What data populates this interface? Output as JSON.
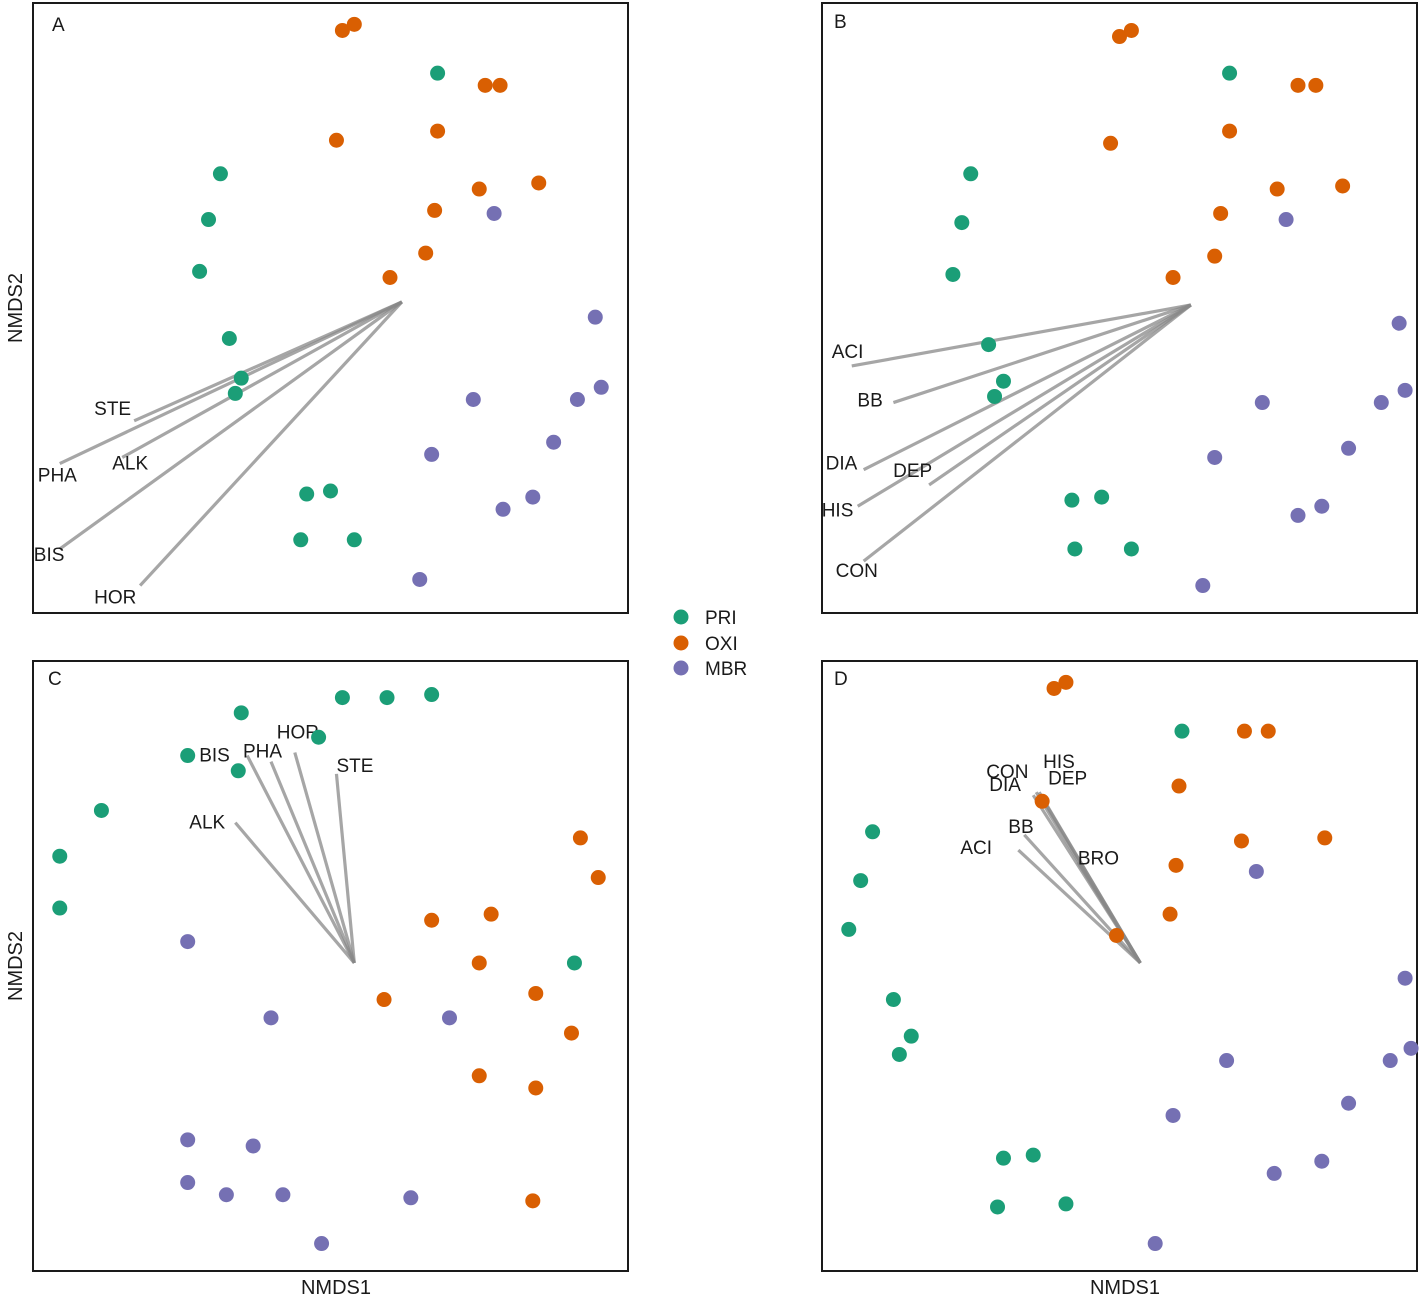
{
  "figure": {
    "xlabel": "NMDS1",
    "ylabel": "NMDS2"
  },
  "legend": {
    "position": "center",
    "items": [
      {
        "name": "PRI",
        "color": "#1b9e77"
      },
      {
        "name": "OXI",
        "color": "#d95f02"
      },
      {
        "name": "MBR",
        "color": "#7570b3"
      }
    ]
  },
  "colors": {
    "PRI": "#1b9e77",
    "OXI": "#d95f02",
    "MBR": "#7570b3",
    "arrow": "#888888",
    "frame": "#1a1a1a"
  },
  "chart_data": [
    {
      "panel": "A",
      "type": "scatter",
      "xlabel": "",
      "ylabel": "NMDS2",
      "xlim": [
        0,
        100
      ],
      "ylim": [
        0,
        100
      ],
      "arrow_origin": [
        62,
        51
      ],
      "series": [
        {
          "name": "PRI",
          "points": [
            [
              68,
              88.5
            ],
            [
              31.5,
              72
            ],
            [
              29.5,
              64.5
            ],
            [
              28,
              56
            ],
            [
              33,
              45
            ],
            [
              35,
              38.5
            ],
            [
              34,
              36
            ],
            [
              46,
              19.5
            ],
            [
              50,
              20
            ],
            [
              45,
              12
            ],
            [
              54,
              12
            ]
          ]
        },
        {
          "name": "OXI",
          "points": [
            [
              52,
              95.5
            ],
            [
              54,
              96.5
            ],
            [
              76,
              86.5
            ],
            [
              78.5,
              86.5
            ],
            [
              51,
              77.5
            ],
            [
              68,
              79
            ],
            [
              75,
              69.5
            ],
            [
              85,
              70.5
            ],
            [
              67.5,
              66
            ],
            [
              66,
              59
            ],
            [
              60,
              55
            ]
          ]
        },
        {
          "name": "MBR",
          "points": [
            [
              77.5,
              65.5
            ],
            [
              94.5,
              48.5
            ],
            [
              95.5,
              37
            ],
            [
              91.5,
              35
            ],
            [
              74,
              35
            ],
            [
              87.5,
              28
            ],
            [
              67,
              26
            ],
            [
              84,
              19
            ],
            [
              79,
              17
            ],
            [
              65,
              5.5
            ]
          ]
        }
      ],
      "vectors": [
        {
          "name": "STE",
          "end": [
            17,
            31.5
          ]
        },
        {
          "name": "PHA",
          "end": [
            4.5,
            24.5
          ]
        },
        {
          "name": "ALK",
          "end": [
            15,
            25.5
          ]
        },
        {
          "name": "BIS",
          "end": [
            4.5,
            10.5
          ]
        },
        {
          "name": "HOR",
          "end": [
            18,
            4.5
          ]
        }
      ]
    },
    {
      "panel": "B",
      "type": "scatter",
      "xlabel": "",
      "ylabel": "",
      "xlim": [
        0,
        100
      ],
      "ylim": [
        0,
        100
      ],
      "arrow_origin": [
        62,
        50.5
      ],
      "series": [
        {
          "name": "PRI",
          "points": [
            [
              68.5,
              88.5
            ],
            [
              25,
              72
            ],
            [
              23.5,
              64
            ],
            [
              22,
              55.5
            ],
            [
              28,
              44
            ],
            [
              30.5,
              38
            ],
            [
              29,
              35.5
            ],
            [
              42,
              18.5
            ],
            [
              47,
              19
            ],
            [
              42.5,
              10.5
            ],
            [
              52,
              10.5
            ]
          ]
        },
        {
          "name": "OXI",
          "points": [
            [
              50,
              94.5
            ],
            [
              52,
              95.5
            ],
            [
              80,
              86.5
            ],
            [
              83,
              86.5
            ],
            [
              48.5,
              77
            ],
            [
              68.5,
              79
            ],
            [
              76.5,
              69.5
            ],
            [
              87.5,
              70
            ],
            [
              67,
              65.5
            ],
            [
              66,
              58.5
            ],
            [
              59,
              55
            ]
          ]
        },
        {
          "name": "MBR",
          "points": [
            [
              78,
              64.5
            ],
            [
              97,
              47.5
            ],
            [
              98,
              36.5
            ],
            [
              94,
              34.5
            ],
            [
              74,
              34.5
            ],
            [
              88.5,
              27
            ],
            [
              66,
              25.5
            ],
            [
              84,
              17.5
            ],
            [
              80,
              16
            ],
            [
              64,
              4.5
            ]
          ]
        }
      ],
      "vectors": [
        {
          "name": "ACI",
          "end": [
            5,
            40.5
          ]
        },
        {
          "name": "BB",
          "end": [
            12,
            34.5
          ]
        },
        {
          "name": "DIA",
          "end": [
            7,
            23.5
          ]
        },
        {
          "name": "HIS",
          "end": [
            6,
            17.5
          ]
        },
        {
          "name": "DEP",
          "end": [
            18,
            21
          ]
        },
        {
          "name": "CON",
          "end": [
            7,
            8.5
          ]
        }
      ]
    },
    {
      "panel": "C",
      "type": "scatter",
      "xlabel": "NMDS1",
      "ylabel": "NMDS2",
      "xlim": [
        0,
        100
      ],
      "ylim": [
        0,
        100
      ],
      "arrow_origin": [
        54,
        50.5
      ],
      "series": [
        {
          "name": "PRI",
          "points": [
            [
              52,
              94
            ],
            [
              59.5,
              94
            ],
            [
              67,
              94.5
            ],
            [
              35,
              91.5
            ],
            [
              48,
              87.5
            ],
            [
              26,
              84.5
            ],
            [
              34.5,
              82
            ],
            [
              11.5,
              75.5
            ],
            [
              4.5,
              68
            ],
            [
              4.5,
              59.5
            ],
            [
              91,
              50.5
            ]
          ]
        },
        {
          "name": "OXI",
          "points": [
            [
              92,
              71
            ],
            [
              95,
              64.5
            ],
            [
              67,
              57.5
            ],
            [
              77,
              58.5
            ],
            [
              75,
              50.5
            ],
            [
              59,
              44.5
            ],
            [
              84.5,
              45.5
            ],
            [
              90.5,
              39
            ],
            [
              75,
              32
            ],
            [
              84.5,
              30
            ],
            [
              84,
              11.5
            ]
          ]
        },
        {
          "name": "MBR",
          "points": [
            [
              26,
              54
            ],
            [
              40,
              41.5
            ],
            [
              70,
              41.5
            ],
            [
              26,
              21.5
            ],
            [
              37,
              20.5
            ],
            [
              26,
              14.5
            ],
            [
              32.5,
              12.5
            ],
            [
              42,
              12.5
            ],
            [
              63.5,
              12
            ],
            [
              48.5,
              4.5
            ]
          ]
        }
      ],
      "vectors": [
        {
          "name": "BIS",
          "end": [
            36,
            84.5
          ]
        },
        {
          "name": "PHA",
          "end": [
            40,
            83.5
          ]
        },
        {
          "name": "HOR",
          "end": [
            44,
            85
          ]
        },
        {
          "name": "STE",
          "end": [
            51,
            81.5
          ]
        },
        {
          "name": "ALK",
          "end": [
            34,
            73.5
          ]
        }
      ]
    },
    {
      "panel": "D",
      "type": "scatter",
      "xlabel": "NMDS1",
      "ylabel": "",
      "xlim": [
        0,
        100
      ],
      "ylim": [
        0,
        100
      ],
      "arrow_origin": [
        53.5,
        50.5
      ],
      "series": [
        {
          "name": "PRI",
          "points": [
            [
              60.5,
              88.5
            ],
            [
              8.5,
              72
            ],
            [
              6.5,
              64
            ],
            [
              4.5,
              56
            ],
            [
              12,
              44.5
            ],
            [
              15,
              38.5
            ],
            [
              13,
              35.5
            ],
            [
              30.5,
              18.5
            ],
            [
              35.5,
              19
            ],
            [
              29.5,
              10.5
            ],
            [
              41,
              11
            ]
          ]
        },
        {
          "name": "OXI",
          "points": [
            [
              39,
              95.5
            ],
            [
              41,
              96.5
            ],
            [
              71,
              88.5
            ],
            [
              75,
              88.5
            ],
            [
              60,
              79.5
            ],
            [
              37,
              77
            ],
            [
              70.5,
              70.5
            ],
            [
              84.5,
              71
            ],
            [
              59.5,
              66.5
            ],
            [
              49.5,
              55
            ],
            [
              58.5,
              58.5
            ]
          ]
        },
        {
          "name": "MBR",
          "points": [
            [
              73,
              65.5
            ],
            [
              98,
              48
            ],
            [
              99,
              36.5
            ],
            [
              95.5,
              34.5
            ],
            [
              68,
              34.5
            ],
            [
              88.5,
              27.5
            ],
            [
              59,
              25.5
            ],
            [
              84,
              18
            ],
            [
              76,
              16
            ],
            [
              56,
              4.5
            ]
          ]
        }
      ],
      "vectors": [
        {
          "name": "CON",
          "end": [
            36,
            78.5
          ]
        },
        {
          "name": "HIS",
          "end": [
            36.5,
            78.5
          ]
        },
        {
          "name": "DIA",
          "end": [
            35.5,
            78
          ]
        },
        {
          "name": "DEP",
          "end": [
            37,
            77.5
          ]
        },
        {
          "name": "BB",
          "end": [
            34,
            71.5
          ]
        },
        {
          "name": "ACI",
          "end": [
            33,
            69
          ]
        },
        {
          "name": "BRO",
          "end": [
            43,
            67
          ]
        }
      ]
    }
  ]
}
